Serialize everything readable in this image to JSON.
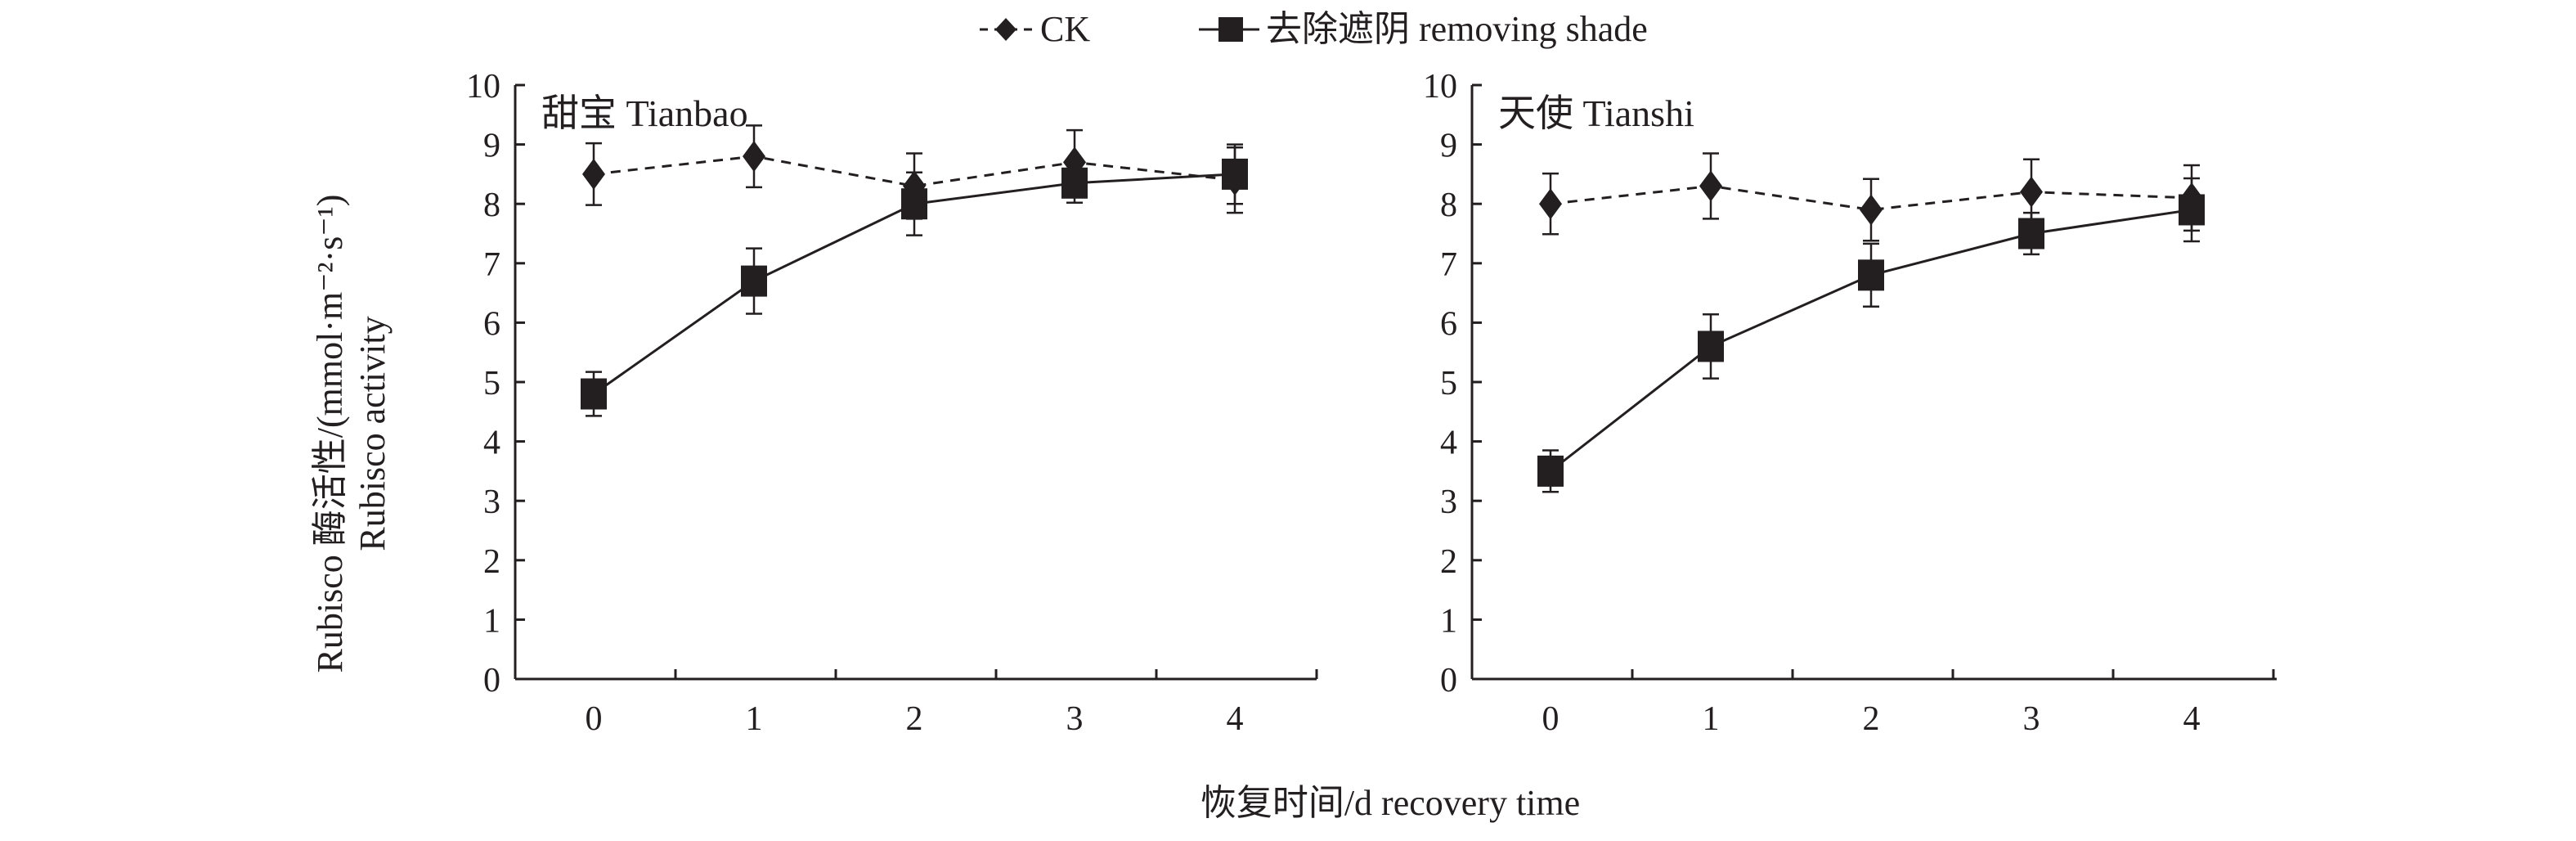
{
  "chart_data": [
    {
      "type": "line",
      "title": "甜宝 Tianbao",
      "xlabel": "恢复时间/d recovery time",
      "ylabel": "Rubisco 酶活性/(mmol·m⁻²·s⁻¹)",
      "ylabel2": "Rubisco activity",
      "x": [
        0,
        1,
        2,
        3,
        4
      ],
      "xticks": [
        "0",
        "1",
        "2",
        "3",
        "4"
      ],
      "yticks": [
        "0",
        "1",
        "2",
        "3",
        "4",
        "5",
        "6",
        "7",
        "8",
        "9",
        "10"
      ],
      "ylim": [
        0,
        10
      ],
      "series": [
        {
          "name": "CK",
          "values": [
            8.5,
            8.8,
            8.3,
            8.7,
            8.4
          ],
          "errors": [
            0.52,
            0.52,
            0.55,
            0.54,
            0.55
          ],
          "style": "dashed",
          "marker": "diamond"
        },
        {
          "name": "去除遮阴 removing shade",
          "values": [
            4.8,
            6.7,
            8.0,
            8.35,
            8.5
          ],
          "errors": [
            0.37,
            0.55,
            0.53,
            0.33,
            0.5
          ],
          "style": "solid",
          "marker": "square"
        }
      ]
    },
    {
      "type": "line",
      "title": "天使 Tianshi",
      "x": [
        0,
        1,
        2,
        3,
        4
      ],
      "xticks": [
        "0",
        "1",
        "2",
        "3",
        "4"
      ],
      "yticks": [
        "0",
        "1",
        "2",
        "3",
        "4",
        "5",
        "6",
        "7",
        "8",
        "9",
        "10"
      ],
      "ylim": [
        0,
        10
      ],
      "series": [
        {
          "name": "CK",
          "values": [
            8.0,
            8.3,
            7.9,
            8.2,
            8.1
          ],
          "errors": [
            0.51,
            0.55,
            0.52,
            0.55,
            0.55
          ],
          "style": "dashed",
          "marker": "diamond"
        },
        {
          "name": "去除遮阴 removing shade",
          "values": [
            3.5,
            5.6,
            6.8,
            7.5,
            7.9
          ],
          "errors": [
            0.35,
            0.54,
            0.53,
            0.35,
            0.53
          ],
          "style": "solid",
          "marker": "square"
        }
      ]
    }
  ],
  "legend": {
    "placement": "top-center",
    "items": [
      "CK",
      "去除遮阴 removing shade"
    ]
  },
  "colors": {
    "ink": "#231f20"
  }
}
